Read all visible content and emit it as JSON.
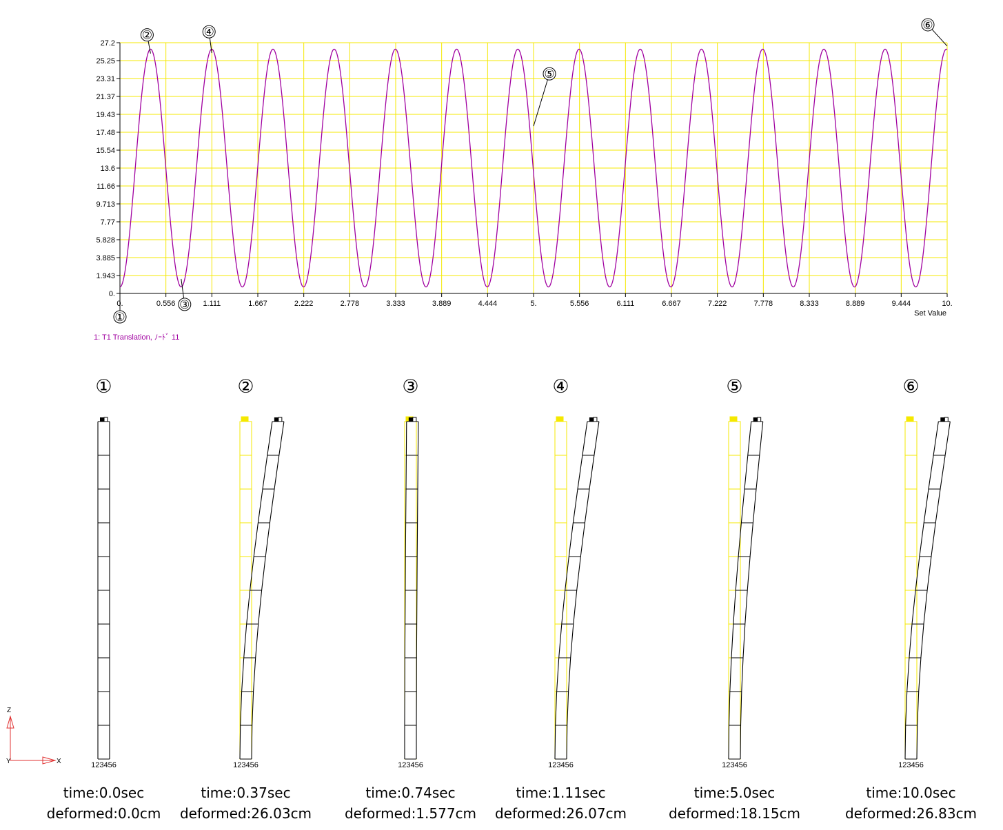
{
  "chart_data": {
    "type": "line",
    "xlabel": "Set Value",
    "ylabel": "",
    "title": "",
    "x_ticks": [
      "0.",
      "0.556",
      "1.111",
      "1.667",
      "2.222",
      "2.778",
      "3.333",
      "3.889",
      "4.444",
      "5.",
      "5.556",
      "6.111",
      "6.667",
      "7.222",
      "7.778",
      "8.333",
      "8.889",
      "9.444",
      "10."
    ],
    "y_ticks": [
      "0.",
      "1.943",
      "3.885",
      "5.828",
      "7.77",
      "9.713",
      "11.66",
      "13.6",
      "15.54",
      "17.48",
      "19.43",
      "21.37",
      "23.31",
      "25.25",
      "27.2"
    ],
    "xlim": [
      0,
      10
    ],
    "ylim": [
      0,
      27.2
    ],
    "grid": true,
    "series": [
      {
        "name": "1: T1 Translation, ﾉｰﾄﾞ 11",
        "color": "#a000a0",
        "waveform": {
          "center": 13.6,
          "amplitude": 12.9,
          "period": 0.74,
          "start_value": 0.0
        }
      }
    ],
    "annotations": [
      {
        "label": "①",
        "x": 0.0,
        "y": 0.0
      },
      {
        "label": "②",
        "x": 0.37,
        "y": 26.03
      },
      {
        "label": "③",
        "x": 0.74,
        "y": 1.577
      },
      {
        "label": "④",
        "x": 1.11,
        "y": 26.07
      },
      {
        "label": "⑤",
        "x": 5.0,
        "y": 18.15
      },
      {
        "label": "⑥",
        "x": 10.0,
        "y": 26.83
      }
    ],
    "colors": {
      "curve": "#a000a0",
      "grid": "#f5e800",
      "axis": "#000000"
    }
  },
  "snapshots": [
    {
      "marker": "①",
      "deflection": 0.0,
      "show_undeformed": false,
      "node_label": "123456",
      "time_text": "time:0.0sec",
      "deformed_text": "deformed:0.0cm"
    },
    {
      "marker": "②",
      "deflection": 26.03,
      "show_undeformed": true,
      "node_label": "123456",
      "time_text": "time:0.37sec",
      "deformed_text": "deformed:26.03cm"
    },
    {
      "marker": "③",
      "deflection": 1.577,
      "show_undeformed": true,
      "node_label": "123456",
      "time_text": "time:0.74sec",
      "deformed_text": "deformed:1.577cm"
    },
    {
      "marker": "④",
      "deflection": 26.07,
      "show_undeformed": true,
      "node_label": "123456",
      "time_text": "time:1.11sec",
      "deformed_text": "deformed:26.07cm"
    },
    {
      "marker": "⑤",
      "deflection": 18.15,
      "show_undeformed": true,
      "node_label": "123456",
      "time_text": "time:5.0sec",
      "deformed_text": "deformed:18.15cm"
    },
    {
      "marker": "⑥",
      "deflection": 26.83,
      "show_undeformed": true,
      "node_label": "123456",
      "time_text": "time:10.0sec",
      "deformed_text": "deformed:26.83cm"
    }
  ],
  "triad": {
    "z_label": "Z",
    "x_label": "X",
    "y_label": "Y",
    "color": "#e03030"
  },
  "mesh_colors": {
    "deformed": "#000000",
    "undeformed": "#f5e800"
  }
}
